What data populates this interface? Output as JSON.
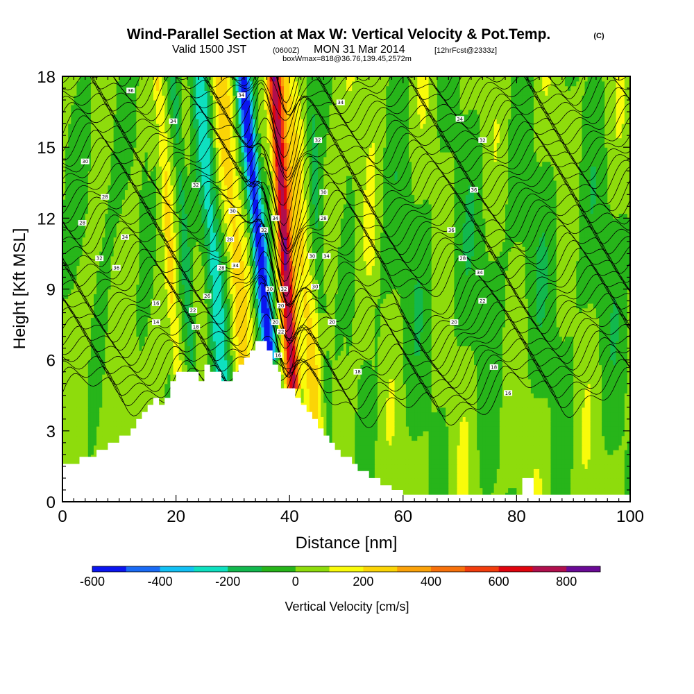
{
  "title": {
    "main": "Wind-Parallel Section at Max W: Vertical Velocity & Pot.Temp.",
    "copyright": "(C)",
    "line2_a": "Valid 1500 JST",
    "line2_b": "(0600Z)",
    "line2_c": "MON 31 Mar 2014",
    "line2_d": "[12hrFcst@2333z]",
    "line3": "boxWmax=818@36.76,139.45,2572m"
  },
  "chart_data": {
    "type": "heatmap",
    "xlabel": "Distance [nm]",
    "ylabel": "Height [Kft MSL]",
    "xlim": [
      0,
      100
    ],
    "ylim": [
      0,
      18
    ],
    "xticks": [
      0,
      20,
      40,
      60,
      80,
      100
    ],
    "xtick_labels": [
      "0",
      "20",
      "40",
      "60",
      "80",
      "100"
    ],
    "yticks": [
      0,
      3,
      6,
      9,
      12,
      15,
      18
    ],
    "ytick_labels": [
      "0",
      "3",
      "6",
      "9",
      "12",
      "15",
      "18"
    ],
    "colorbar": {
      "title": "Vertical Velocity [cm/s]",
      "bounds": [
        -600,
        900
      ],
      "step": 100,
      "colors": [
        "#0b16f0",
        "#1a6bf5",
        "#12c0f4",
        "#0ee0c0",
        "#12b84e",
        "#27b51a",
        "#8edc0c",
        "#f9fb0b",
        "#fbd406",
        "#fba209",
        "#f7710b",
        "#f23d0d",
        "#e0040e",
        "#b00f4d",
        "#6a0a96"
      ],
      "tick_values": [
        -600,
        -400,
        -200,
        0,
        200,
        400,
        600,
        800
      ],
      "tick_labels": [
        "-600",
        "-400",
        "-200",
        "0",
        "200",
        "400",
        "600",
        "800"
      ]
    },
    "terrain_kft": [
      [
        0,
        1.6
      ],
      [
        3,
        1.6
      ],
      [
        3,
        1.9
      ],
      [
        6,
        1.9
      ],
      [
        6,
        2.2
      ],
      [
        8,
        2.2
      ],
      [
        8,
        2.5
      ],
      [
        10,
        2.5
      ],
      [
        10,
        2.8
      ],
      [
        12,
        2.8
      ],
      [
        12,
        3.1
      ],
      [
        13,
        3.1
      ],
      [
        13,
        3.5
      ],
      [
        14,
        3.5
      ],
      [
        14,
        3.8
      ],
      [
        15,
        3.8
      ],
      [
        15,
        4.1
      ],
      [
        16,
        4.1
      ],
      [
        16,
        4.4
      ],
      [
        17,
        4.4
      ],
      [
        17,
        4.1
      ],
      [
        18,
        4.1
      ],
      [
        18,
        4.4
      ],
      [
        19,
        4.4
      ],
      [
        19,
        5.1
      ],
      [
        20,
        5.1
      ],
      [
        20,
        5.5
      ],
      [
        24,
        5.5
      ],
      [
        24,
        5.1
      ],
      [
        25,
        5.1
      ],
      [
        25,
        5.8
      ],
      [
        26,
        5.8
      ],
      [
        26,
        5.5
      ],
      [
        28,
        5.5
      ],
      [
        28,
        5.1
      ],
      [
        30,
        5.1
      ],
      [
        30,
        5.5
      ],
      [
        31,
        5.5
      ],
      [
        31,
        5.8
      ],
      [
        32,
        5.8
      ],
      [
        32,
        6.1
      ],
      [
        33,
        6.1
      ],
      [
        33,
        6.4
      ],
      [
        34,
        6.4
      ],
      [
        34,
        6.8
      ],
      [
        36,
        6.8
      ],
      [
        36,
        6.4
      ],
      [
        37,
        6.4
      ],
      [
        37,
        5.8
      ],
      [
        38,
        5.8
      ],
      [
        38,
        5.5
      ],
      [
        38.5,
        5.5
      ],
      [
        38.5,
        4.8
      ],
      [
        41,
        4.8
      ],
      [
        41,
        4.4
      ],
      [
        42,
        4.4
      ],
      [
        42,
        4.1
      ],
      [
        43,
        4.1
      ],
      [
        43,
        3.8
      ],
      [
        44,
        3.8
      ],
      [
        44,
        3.5
      ],
      [
        45,
        3.5
      ],
      [
        45,
        3.1
      ],
      [
        46,
        3.1
      ],
      [
        46,
        2.8
      ],
      [
        47,
        2.8
      ],
      [
        47,
        2.5
      ],
      [
        48,
        2.5
      ],
      [
        48,
        2.2
      ],
      [
        49,
        2.2
      ],
      [
        49,
        1.9
      ],
      [
        51,
        1.9
      ],
      [
        51,
        1.6
      ],
      [
        52,
        1.6
      ],
      [
        52,
        1.3
      ],
      [
        54,
        1.3
      ],
      [
        54,
        1.0
      ],
      [
        56,
        1.0
      ],
      [
        56,
        0.7
      ],
      [
        58,
        0.7
      ],
      [
        58,
        0.5
      ],
      [
        60,
        0.5
      ],
      [
        60,
        0.3
      ],
      [
        80,
        0.3
      ],
      [
        80,
        0.3
      ],
      [
        81,
        0.3
      ],
      [
        81,
        1.0
      ],
      [
        83,
        1.0
      ],
      [
        83,
        0.3
      ],
      [
        100,
        0.3
      ]
    ],
    "isentrope_labels": [
      {
        "x": 12,
        "y": 17.4,
        "text": "36"
      },
      {
        "x": 19.5,
        "y": 16.1,
        "text": "34"
      },
      {
        "x": 31.5,
        "y": 17.2,
        "text": "34"
      },
      {
        "x": 49,
        "y": 16.9,
        "text": "34"
      },
      {
        "x": 70,
        "y": 16.2,
        "text": "34"
      },
      {
        "x": 74,
        "y": 15.3,
        "text": "32"
      },
      {
        "x": 45,
        "y": 15.3,
        "text": "32"
      },
      {
        "x": 4,
        "y": 14.4,
        "text": "30"
      },
      {
        "x": 23.5,
        "y": 13.4,
        "text": "32"
      },
      {
        "x": 46,
        "y": 13.1,
        "text": "30"
      },
      {
        "x": 72.5,
        "y": 13.2,
        "text": "36"
      },
      {
        "x": 7.5,
        "y": 12.9,
        "text": "28"
      },
      {
        "x": 30,
        "y": 12.3,
        "text": "30"
      },
      {
        "x": 37.5,
        "y": 12.0,
        "text": "34"
      },
      {
        "x": 46,
        "y": 12.0,
        "text": "28"
      },
      {
        "x": 3.5,
        "y": 11.8,
        "text": "28"
      },
      {
        "x": 68.5,
        "y": 11.5,
        "text": "36"
      },
      {
        "x": 11,
        "y": 11.2,
        "text": "34"
      },
      {
        "x": 35.5,
        "y": 11.5,
        "text": "32"
      },
      {
        "x": 29.5,
        "y": 11.1,
        "text": "28"
      },
      {
        "x": 44,
        "y": 10.4,
        "text": "30"
      },
      {
        "x": 46.5,
        "y": 10.4,
        "text": "34"
      },
      {
        "x": 6.5,
        "y": 10.3,
        "text": "32"
      },
      {
        "x": 70.5,
        "y": 10.3,
        "text": "28"
      },
      {
        "x": 30.5,
        "y": 10.0,
        "text": "34"
      },
      {
        "x": 28,
        "y": 9.9,
        "text": "28"
      },
      {
        "x": 9.5,
        "y": 9.9,
        "text": "36"
      },
      {
        "x": 73.5,
        "y": 9.7,
        "text": "34"
      },
      {
        "x": 36.5,
        "y": 9.0,
        "text": "30"
      },
      {
        "x": 39,
        "y": 9.0,
        "text": "32"
      },
      {
        "x": 44.5,
        "y": 9.1,
        "text": "30"
      },
      {
        "x": 25.5,
        "y": 8.7,
        "text": "26"
      },
      {
        "x": 16.5,
        "y": 8.4,
        "text": "16"
      },
      {
        "x": 74,
        "y": 8.5,
        "text": "22"
      },
      {
        "x": 38.5,
        "y": 8.3,
        "text": "20"
      },
      {
        "x": 23,
        "y": 8.1,
        "text": "22"
      },
      {
        "x": 37.5,
        "y": 7.6,
        "text": "20"
      },
      {
        "x": 47.5,
        "y": 7.6,
        "text": "20"
      },
      {
        "x": 69,
        "y": 7.6,
        "text": "20"
      },
      {
        "x": 16.5,
        "y": 7.6,
        "text": "14"
      },
      {
        "x": 23.5,
        "y": 7.4,
        "text": "18"
      },
      {
        "x": 38.5,
        "y": 7.2,
        "text": "22"
      },
      {
        "x": 38,
        "y": 6.2,
        "text": "16"
      },
      {
        "x": 52,
        "y": 5.5,
        "text": "18"
      },
      {
        "x": 76,
        "y": 5.7,
        "text": "18"
      },
      {
        "x": 78.5,
        "y": 4.6,
        "text": "16"
      }
    ]
  }
}
